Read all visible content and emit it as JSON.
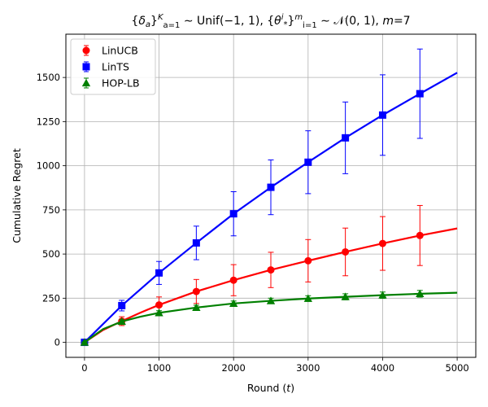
{
  "chart_data": {
    "type": "line",
    "title_parts": [
      "{",
      "δ",
      "a",
      "}",
      "K",
      "a=1",
      " ∼ Unif(−1, 1), {",
      "θ",
      "i",
      "*",
      "}",
      "m",
      "i=1",
      " ∼ ",
      "𝒩",
      "(0, 1), ",
      "m",
      "=7"
    ],
    "xlabel_parts": [
      "Round (",
      "t",
      ")"
    ],
    "ylabel": "Cumulative Regret",
    "xlim": [
      -250,
      5250
    ],
    "ylim": [
      -85,
      1745
    ],
    "xticks": [
      0,
      1000,
      2000,
      3000,
      4000,
      5000
    ],
    "yticks": [
      0,
      250,
      500,
      750,
      1000,
      1250,
      1500
    ],
    "grid": true,
    "legend_placement": "top-left",
    "series": [
      {
        "name": "LinUCB",
        "color": "#ff0000",
        "marker": "circle",
        "line": {
          "x": [
            0,
            250,
            500,
            750,
            1000,
            1500,
            2000,
            2500,
            3000,
            3500,
            4000,
            4500,
            5000
          ],
          "y": [
            0,
            70,
            120,
            168,
            212,
            288,
            352,
            410,
            462,
            512,
            560,
            605,
            645
          ]
        },
        "points": {
          "x": [
            0,
            500,
            1000,
            1500,
            2000,
            2500,
            3000,
            3500,
            4000,
            4500
          ],
          "y": [
            0,
            120,
            212,
            288,
            352,
            410,
            462,
            512,
            560,
            605
          ],
          "err": [
            2,
            25,
            45,
            68,
            88,
            100,
            120,
            135,
            152,
            170
          ]
        }
      },
      {
        "name": "LinTS",
        "color": "#0000ff",
        "marker": "square",
        "line": {
          "x": [
            0,
            500,
            1000,
            1500,
            2000,
            2500,
            3000,
            3500,
            4000,
            4500,
            5000
          ],
          "y": [
            0,
            208,
            393,
            563,
            728,
            878,
            1020,
            1158,
            1287,
            1408,
            1527
          ]
        },
        "points": {
          "x": [
            0,
            500,
            1000,
            1500,
            2000,
            2500,
            3000,
            3500,
            4000,
            4500
          ],
          "y": [
            0,
            208,
            393,
            563,
            728,
            878,
            1020,
            1158,
            1287,
            1408
          ],
          "err": [
            2,
            30,
            65,
            95,
            125,
            155,
            178,
            203,
            228,
            253
          ]
        }
      },
      {
        "name": "HOP-LB",
        "color": "#008000",
        "marker": "triangle",
        "line": {
          "x": [
            0,
            250,
            500,
            750,
            1000,
            1500,
            2000,
            2500,
            3000,
            3500,
            4000,
            4500,
            5000
          ],
          "y": [
            0,
            75,
            118,
            145,
            167,
            197,
            220,
            235,
            248,
            258,
            267,
            275,
            281
          ]
        },
        "points": {
          "x": [
            0,
            500,
            1000,
            1500,
            2000,
            2500,
            3000,
            3500,
            4000,
            4500
          ],
          "y": [
            0,
            118,
            167,
            197,
            220,
            235,
            248,
            258,
            267,
            275
          ],
          "err": [
            2,
            10,
            12,
            13,
            14,
            15,
            16,
            17,
            18,
            19
          ]
        }
      }
    ]
  }
}
